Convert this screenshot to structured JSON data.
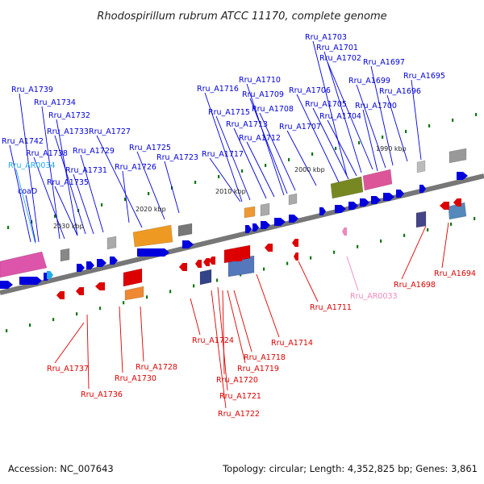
{
  "title": "Rhodospirillum rubrum ATCC 11170, complete genome",
  "footer": {
    "accession": "Accession: NC_007643",
    "stats": "Topology: circular; Length: 4,352,825 bp; Genes: 3,861"
  },
  "colors": {
    "forward": "#0000dd",
    "reverse": "#dd0000",
    "rna_forward": "#22aaee",
    "rna_reverse": "#ee88bb",
    "backbone": "#777777",
    "tick": "#117711"
  },
  "scale_marks": [
    "2030 kbp",
    "2020 kbp",
    "2010 kbp",
    "2000 kbp",
    "1990 kbp"
  ],
  "labels_top": [
    "Rru_A1703",
    "Rru_A1701",
    "Rru_A1702",
    "Rru_A1697",
    "Rru_A1695",
    "Rru_A1699",
    "Rru_A1696",
    "Rru_A1739",
    "Rru_A1734",
    "Rru_A1732",
    "Rru_A1733",
    "Rru_A1727",
    "Rru_A1742",
    "Rru_A1738",
    "Rru_AR0034",
    "Rru_A1731",
    "Rru_A1729",
    "Rru_A1735",
    "coaD",
    "Rru_A1725",
    "Rru_A1726",
    "Rru_A1723",
    "Rru_A1716",
    "Rru_A1710",
    "Rru_A1709",
    "Rru_A1706",
    "Rru_A1705",
    "Rru_A1700",
    "Rru_A1715",
    "Rru_A1708",
    "Rru_A1704",
    "Rru_A1713",
    "Rru_A1707",
    "Rru_A1712",
    "Rru_A1717"
  ],
  "labels_bottom": [
    "Rru_A1694",
    "Rru_A1698",
    "Rru_AR0033",
    "Rru_A1711",
    "Rru_A1714",
    "Rru_A1724",
    "Rru_A1718",
    "Rru_A1719",
    "Rru_A1720",
    "Rru_A1721",
    "Rru_A1722",
    "Rru_A1728",
    "Rru_A1730",
    "Rru_A1737",
    "Rru_A1736"
  ]
}
